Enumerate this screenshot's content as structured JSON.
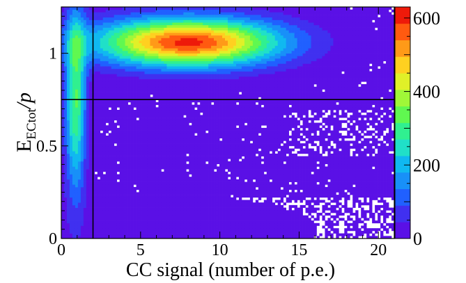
{
  "chart_data": {
    "type": "heatmap",
    "title": "",
    "xlabel": "CC signal (number of p.e.)",
    "ylabel": {
      "base": "E",
      "subscript": "ECtot",
      "suffix": "/p"
    },
    "xlim": [
      0,
      21
    ],
    "ylim": [
      0,
      1.25
    ],
    "x_ticks": [
      "0",
      "5",
      "10",
      "15",
      "20"
    ],
    "y_ticks": [
      "0",
      "0.5",
      "1"
    ],
    "colorbar": {
      "min": 0,
      "max": 630,
      "tick_labels": [
        "0",
        "200",
        "400",
        "600"
      ],
      "palette": [
        "#5a10e6",
        "#4030f0",
        "#2060ff",
        "#1890f8",
        "#10b8f0",
        "#20e0c8",
        "#30f090",
        "#60f850",
        "#a0f838",
        "#e0f028",
        "#ffd020",
        "#ff9a18",
        "#ff5a10",
        "#ee1a0a"
      ]
    },
    "cut_lines": {
      "x": 2,
      "y": 0.75
    },
    "components": [
      {
        "name": "electron band",
        "x_center": 8,
        "x_sigma": 4,
        "y_center": 1.06,
        "y_sigma": 0.09,
        "peak": 600
      },
      {
        "name": "low-signal streak",
        "x_center": 0.9,
        "x_sigma": 0.45,
        "y_center": 0.75,
        "y_sigma": 0.35,
        "peak": 320
      },
      {
        "name": "pion background",
        "x_center": 4,
        "x_sigma": 9,
        "y_center": 0.05,
        "y_sigma": 0.15,
        "peak": 15
      }
    ]
  }
}
